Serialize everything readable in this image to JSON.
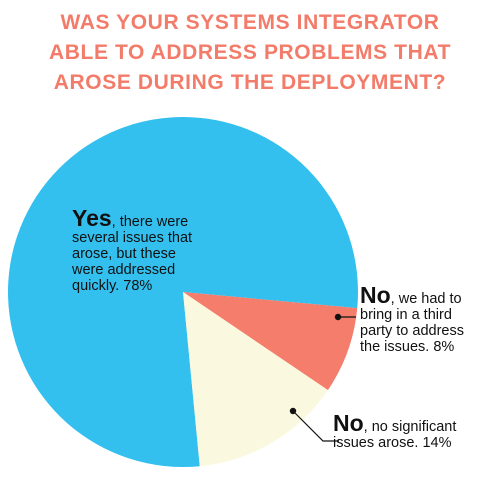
{
  "title_lines": [
    "WAS YOUR SYSTEMS INTEGRATOR",
    "ABLE TO ADDRESS PROBLEMS THAT",
    "AROSE DURING THE DEPLOYMENT?"
  ],
  "colors": {
    "title": "#f37b69",
    "slice_yes": "#33c0ef",
    "slice_third_party": "#f47d6b",
    "slice_no_significant": "#fbf8e0",
    "label_text": "#111111"
  },
  "chart_data": {
    "type": "pie",
    "title": "WAS YOUR SYSTEMS INTEGRATOR ABLE TO ADDRESS PROBLEMS THAT AROSE DURING THE DEPLOYMENT?",
    "slices": [
      {
        "label": "Yes, there were several issues that arose, but these were addressed quickly.",
        "value": 78,
        "color": "#33c0ef",
        "lead": "Yes",
        "text_lines": [
          ", there were",
          "several issues that",
          "arose, but these",
          "were addressed",
          "quickly. 78%"
        ]
      },
      {
        "label": "No, we had to bring in a third party to address the issues.",
        "value": 8,
        "color": "#f47d6b",
        "lead": "No",
        "text_lines": [
          ", we had to",
          "bring in a third",
          "party to address",
          "the issues. 8%"
        ]
      },
      {
        "label": "No, no significant issues arose.",
        "value": 14,
        "color": "#fbf8e0",
        "lead": "No",
        "text_lines": [
          ", no significant",
          "issues arose. 14%"
        ]
      }
    ],
    "legend": "none"
  }
}
